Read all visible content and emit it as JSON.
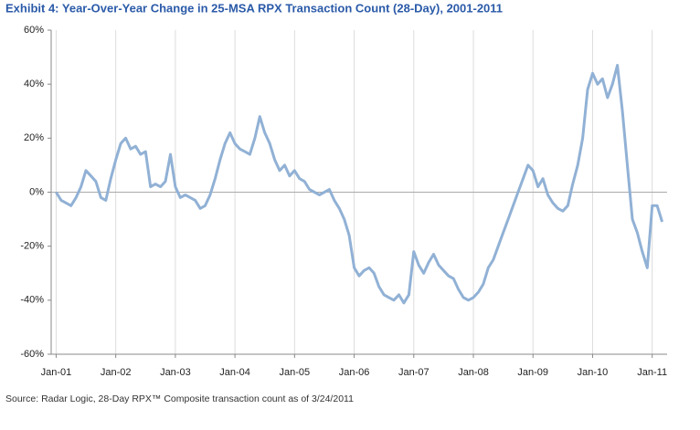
{
  "chart_data": {
    "type": "line",
    "title": "Exhibit 4: Year-Over-Year Change in 25-MSA RPX Transaction Count (28-Day), 2001-2011",
    "source": "Source: Radar Logic, 28-Day RPX™ Composite transaction count as of 3/24/2011",
    "color": "#91b1d5",
    "x": [
      "2001-01",
      "2001-02",
      "2001-03",
      "2001-04",
      "2001-05",
      "2001-06",
      "2001-07",
      "2001-08",
      "2001-09",
      "2001-10",
      "2001-11",
      "2001-12",
      "2002-01",
      "2002-02",
      "2002-03",
      "2002-04",
      "2002-05",
      "2002-06",
      "2002-07",
      "2002-08",
      "2002-09",
      "2002-10",
      "2002-11",
      "2002-12",
      "2003-01",
      "2003-02",
      "2003-03",
      "2003-04",
      "2003-05",
      "2003-06",
      "2003-07",
      "2003-08",
      "2003-09",
      "2003-10",
      "2003-11",
      "2003-12",
      "2004-01",
      "2004-02",
      "2004-03",
      "2004-04",
      "2004-05",
      "2004-06",
      "2004-07",
      "2004-08",
      "2004-09",
      "2004-10",
      "2004-11",
      "2004-12",
      "2005-01",
      "2005-02",
      "2005-03",
      "2005-04",
      "2005-05",
      "2005-06",
      "2005-07",
      "2005-08",
      "2005-09",
      "2005-10",
      "2005-11",
      "2005-12",
      "2006-01",
      "2006-02",
      "2006-03",
      "2006-04",
      "2006-05",
      "2006-06",
      "2006-07",
      "2006-08",
      "2006-09",
      "2006-10",
      "2006-11",
      "2006-12",
      "2007-01",
      "2007-02",
      "2007-03",
      "2007-04",
      "2007-05",
      "2007-06",
      "2007-07",
      "2007-08",
      "2007-09",
      "2007-10",
      "2007-11",
      "2007-12",
      "2008-01",
      "2008-02",
      "2008-03",
      "2008-04",
      "2008-05",
      "2008-06",
      "2008-07",
      "2008-08",
      "2008-09",
      "2008-10",
      "2008-11",
      "2008-12",
      "2009-01",
      "2009-02",
      "2009-03",
      "2009-04",
      "2009-05",
      "2009-06",
      "2009-07",
      "2009-08",
      "2009-09",
      "2009-10",
      "2009-11",
      "2009-12",
      "2010-01",
      "2010-02",
      "2010-03",
      "2010-04",
      "2010-05",
      "2010-06",
      "2010-07",
      "2010-08",
      "2010-09",
      "2010-10",
      "2010-11",
      "2010-12",
      "2011-01",
      "2011-02",
      "2011-03"
    ],
    "series": [
      {
        "name": "25-MSA RPX Transaction Count YoY",
        "values": [
          0,
          -3,
          -4,
          -5,
          -2,
          2,
          8,
          6,
          4,
          -2,
          -3,
          5,
          12,
          18,
          20,
          16,
          17,
          14,
          15,
          2,
          3,
          2,
          4,
          14,
          2,
          -2,
          -1,
          -2,
          -3,
          -6,
          -5,
          -1,
          5,
          12,
          18,
          22,
          18,
          16,
          15,
          14,
          20,
          28,
          22,
          18,
          12,
          8,
          10,
          6,
          8,
          5,
          4,
          1,
          0,
          -1,
          0,
          1,
          -3,
          -6,
          -10,
          -16,
          -28,
          -31,
          -29,
          -28,
          -30,
          -35,
          -38,
          -39,
          -40,
          -38,
          -41,
          -38,
          -22,
          -27,
          -30,
          -26,
          -23,
          -27,
          -29,
          -31,
          -32,
          -36,
          -39,
          -40,
          -39,
          -37,
          -34,
          -28,
          -25,
          -20,
          -15,
          -10,
          -5,
          0,
          5,
          10,
          8,
          2,
          5,
          -1,
          -4,
          -6,
          -7,
          -5,
          3,
          10,
          20,
          38,
          44,
          40,
          42,
          35,
          40,
          47,
          30,
          10,
          -10,
          -15,
          -22,
          -28,
          -5,
          -5,
          -11
        ]
      }
    ],
    "xlim": [
      "2000-12",
      "2011-04"
    ],
    "xticks": [
      {
        "value": "2001-01",
        "label": "Jan-01"
      },
      {
        "value": "2002-01",
        "label": "Jan-02"
      },
      {
        "value": "2003-01",
        "label": "Jan-03"
      },
      {
        "value": "2004-01",
        "label": "Jan-04"
      },
      {
        "value": "2005-01",
        "label": "Jan-05"
      },
      {
        "value": "2006-01",
        "label": "Jan-06"
      },
      {
        "value": "2007-01",
        "label": "Jan-07"
      },
      {
        "value": "2008-01",
        "label": "Jan-08"
      },
      {
        "value": "2009-01",
        "label": "Jan-09"
      },
      {
        "value": "2010-01",
        "label": "Jan-10"
      },
      {
        "value": "2011-01",
        "label": "Jan-11"
      }
    ],
    "ylim": [
      -60,
      60
    ],
    "yticks": [
      {
        "value": -60,
        "label": "-60%"
      },
      {
        "value": -40,
        "label": "-40%"
      },
      {
        "value": -20,
        "label": "-20%"
      },
      {
        "value": 0,
        "label": "0%"
      },
      {
        "value": 20,
        "label": "20%"
      },
      {
        "value": 40,
        "label": "40%"
      },
      {
        "value": 60,
        "label": "60%"
      }
    ],
    "grid": true
  }
}
